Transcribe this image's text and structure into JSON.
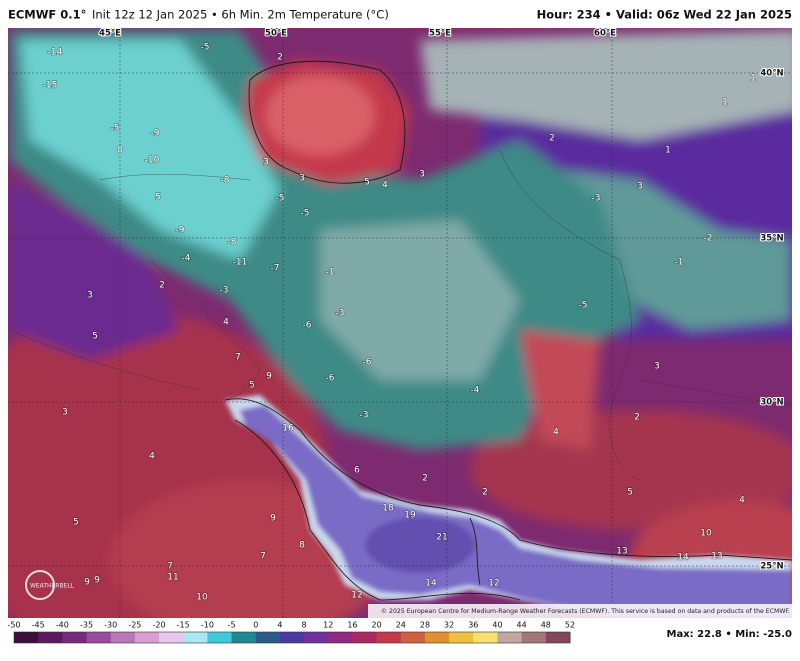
{
  "header": {
    "model": "ECMWF 0.1°",
    "subtitle": "Init 12z 12 Jan 2025 • 6h Min. 2m Temperature (°C)",
    "valid": "Hour: 234 • Valid: 06z Wed 22 Jan 2025"
  },
  "geo_labels": [
    "45°E",
    "50°E",
    "55°E",
    "60°E",
    "40°N",
    "35°N",
    "30°N",
    "25°N"
  ],
  "map_labels": [
    -14,
    -15,
    -5,
    -9,
    -10,
    8,
    -8,
    5,
    -5,
    -5,
    -9,
    -8,
    -11,
    -7,
    -4,
    2,
    -3,
    3,
    5,
    4,
    -6,
    -3,
    -1,
    -6,
    -6,
    -4,
    -3,
    3,
    3,
    5,
    4,
    3,
    2,
    2,
    1,
    1,
    1,
    3,
    -3,
    -1,
    -2,
    -5,
    3,
    2,
    4,
    7,
    9,
    5,
    16,
    6,
    2,
    5,
    4,
    10,
    18,
    19,
    21,
    14,
    12,
    13,
    13,
    14,
    3,
    4,
    5,
    7,
    9,
    7,
    11,
    10,
    9,
    9,
    8,
    12,
    2,
    -5
  ],
  "logo": "WEATHERBELL",
  "credit": "© 2025 European Centre for Medium-Range Weather Forecasts (ECMWF). This service is based on data and products of the ECMWF.",
  "colorbar": {
    "ticks": [
      "-50",
      "-45",
      "-40",
      "-35",
      "-30",
      "-25",
      "-20",
      "-15",
      "-10",
      "-5",
      "0",
      "4",
      "8",
      "12",
      "16",
      "20",
      "24",
      "28",
      "32",
      "36",
      "40",
      "44",
      "48",
      "52"
    ]
  },
  "stats": "Max: 22.8 • Min: -25.0"
}
